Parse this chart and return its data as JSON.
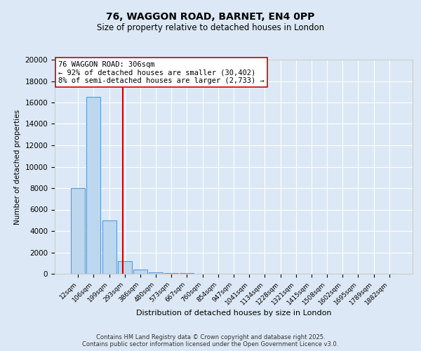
{
  "title": "76, WAGGON ROAD, BARNET, EN4 0PP",
  "subtitle": "Size of property relative to detached houses in London",
  "xlabel": "Distribution of detached houses by size in London",
  "ylabel": "Number of detached properties",
  "annotation_line1": "76 WAGGON ROAD: 306sqm",
  "annotation_line2": "← 92% of detached houses are smaller (30,402)",
  "annotation_line3": "8% of semi-detached houses are larger (2,733) →",
  "bar_categories": [
    "12sqm",
    "106sqm",
    "199sqm",
    "293sqm",
    "386sqm",
    "480sqm",
    "573sqm",
    "667sqm",
    "760sqm",
    "854sqm",
    "947sqm",
    "1041sqm",
    "1134sqm",
    "1228sqm",
    "1321sqm",
    "1415sqm",
    "1508sqm",
    "1602sqm",
    "1695sqm",
    "1789sqm",
    "1882sqm"
  ],
  "bar_values": [
    8000,
    16500,
    5000,
    1200,
    400,
    150,
    70,
    40,
    15,
    8,
    4,
    3,
    2,
    2,
    1,
    1,
    1,
    0,
    0,
    0,
    0
  ],
  "bar_color": "#bdd7ee",
  "bar_edge_color": "#5b9bd5",
  "vline_position": 2.9,
  "vline_color": "#cc0000",
  "annotation_box_edge_color": "#cc0000",
  "background_color": "#dce8f5",
  "footer_line1": "Contains HM Land Registry data © Crown copyright and database right 2025.",
  "footer_line2": "Contains public sector information licensed under the Open Government Licence v3.0.",
  "ylim": [
    0,
    20000
  ],
  "yticks": [
    0,
    2000,
    4000,
    6000,
    8000,
    10000,
    12000,
    14000,
    16000,
    18000,
    20000
  ]
}
